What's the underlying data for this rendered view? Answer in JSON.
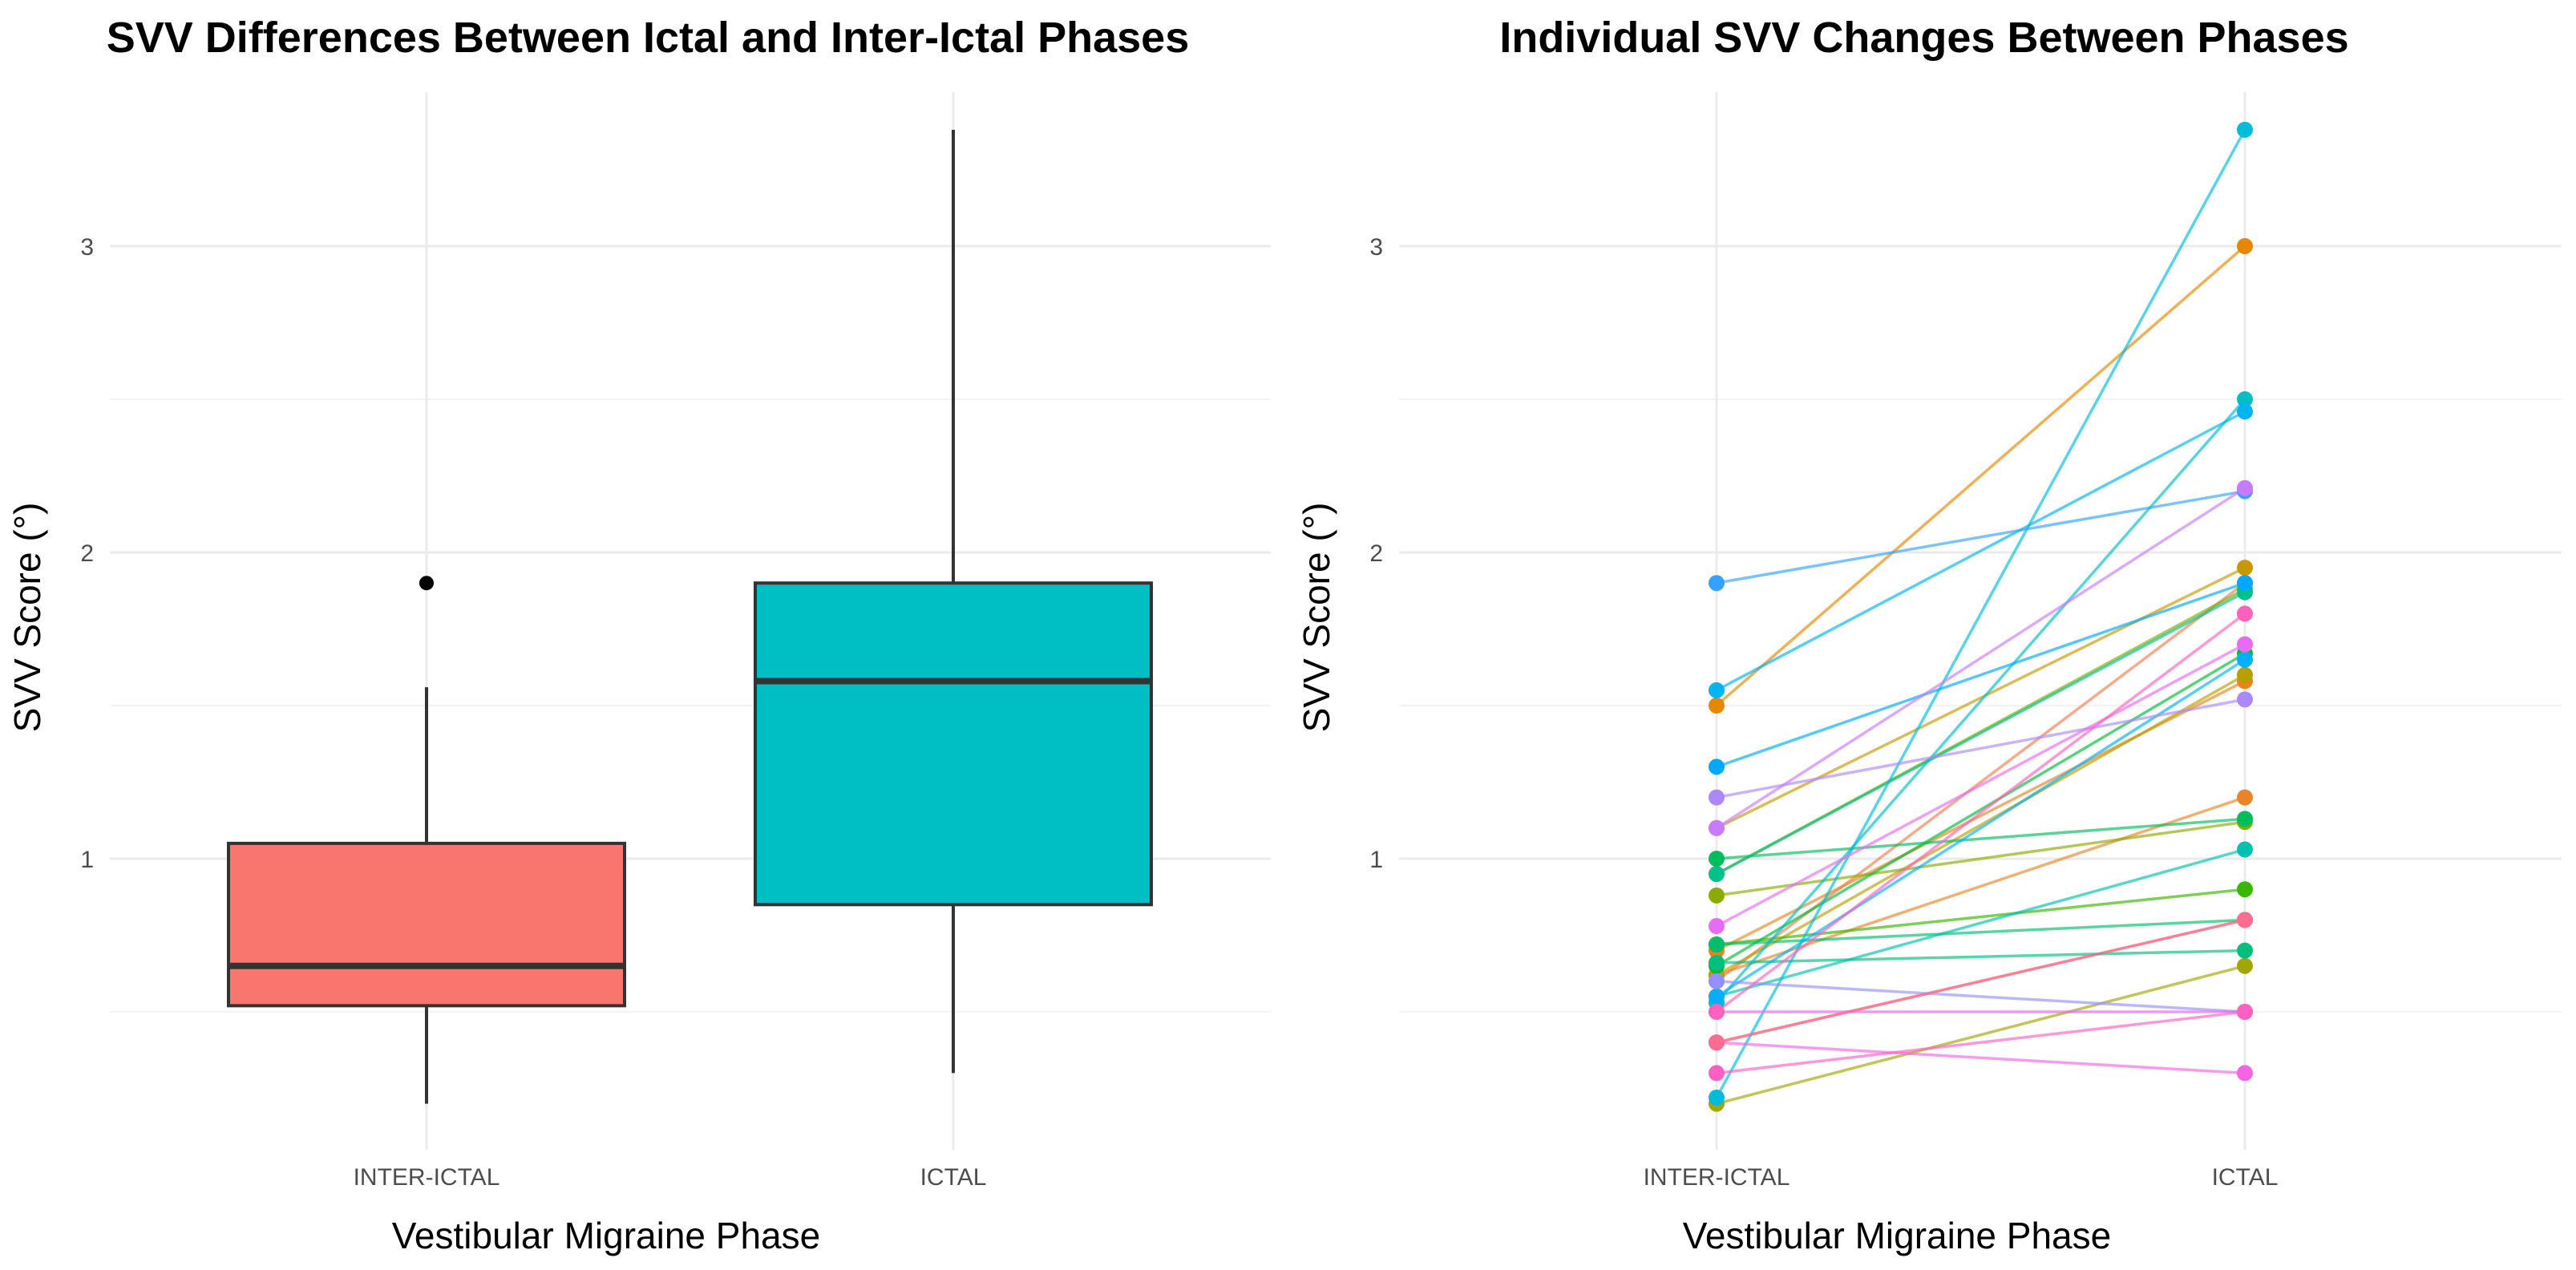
{
  "chart_data": [
    {
      "type": "box",
      "title": "SVV Differences Between Ictal and Inter-Ictal Phases",
      "xlabel": "Vestibular Migraine Phase",
      "ylabel": "SVV Score (°)",
      "categories": [
        "INTER-ICTAL",
        "ICTAL"
      ],
      "yticks": [
        1,
        2,
        3
      ],
      "ylim": [
        0.12,
        3.48
      ],
      "grid": true,
      "boxes": [
        {
          "category": "INTER-ICTAL",
          "color": "#F8766D",
          "whisker_low": 0.2,
          "q1": 0.52,
          "median": 0.65,
          "q3": 1.05,
          "whisker_high": 1.56,
          "outliers": [
            1.9
          ]
        },
        {
          "category": "ICTAL",
          "color": "#00BFC4",
          "whisker_low": 0.3,
          "q1": 0.85,
          "median": 1.58,
          "q3": 1.9,
          "whisker_high": 3.38,
          "outliers": []
        }
      ]
    },
    {
      "type": "line",
      "title": "Individual SVV Changes Between Phases",
      "xlabel": "Vestibular Migraine Phase",
      "ylabel": "SVV Score (°)",
      "categories": [
        "INTER-ICTAL",
        "ICTAL"
      ],
      "yticks": [
        1,
        2,
        3
      ],
      "ylim": [
        0.12,
        3.48
      ],
      "grid": true,
      "legend": "none",
      "series": [
        {
          "color": "#F8766D",
          "values": [
            0.4,
            0.8
          ]
        },
        {
          "color": "#F17E50",
          "values": [
            0.6,
            1.9
          ]
        },
        {
          "color": "#E8851F",
          "values": [
            0.7,
            1.58
          ]
        },
        {
          "color": "#E58700",
          "values": [
            1.5,
            3.0
          ]
        },
        {
          "color": "#E88526",
          "values": [
            0.62,
            1.2
          ]
        },
        {
          "color": "#C99800",
          "values": [
            1.1,
            1.95
          ]
        },
        {
          "color": "#B79F00",
          "values": [
            0.62,
            1.6
          ]
        },
        {
          "color": "#A3A500",
          "values": [
            0.2,
            0.65
          ]
        },
        {
          "color": "#8CAB00",
          "values": [
            0.88,
            1.12
          ]
        },
        {
          "color": "#7CAE00",
          "values": [
            0.95,
            1.88
          ]
        },
        {
          "color": "#39B600",
          "values": [
            0.72,
            0.9
          ]
        },
        {
          "color": "#00BA38",
          "values": [
            0.65,
            1.67
          ]
        },
        {
          "color": "#00BD5C",
          "values": [
            1.0,
            1.13
          ]
        },
        {
          "color": "#00BE6C",
          "values": [
            0.72,
            0.8
          ]
        },
        {
          "color": "#00BF7D",
          "values": [
            0.66,
            0.7
          ]
        },
        {
          "color": "#00C08B",
          "values": [
            0.95,
            1.87
          ]
        },
        {
          "color": "#00C0AF",
          "values": [
            0.55,
            1.03
          ]
        },
        {
          "color": "#00BFC4",
          "values": [
            0.53,
            2.5
          ]
        },
        {
          "color": "#00BCD8",
          "values": [
            0.22,
            3.38
          ]
        },
        {
          "color": "#00B4EF",
          "values": [
            1.55,
            2.46
          ]
        },
        {
          "color": "#00B0F6",
          "values": [
            0.55,
            1.65
          ]
        },
        {
          "color": "#35A2FF",
          "values": [
            1.9,
            2.2
          ]
        },
        {
          "color": "#00A9FF",
          "values": [
            1.3,
            1.9
          ]
        },
        {
          "color": "#9590FF",
          "values": [
            0.6,
            0.5
          ]
        },
        {
          "color": "#AC88FF",
          "values": [
            1.2,
            1.52
          ]
        },
        {
          "color": "#C77CFF",
          "values": [
            1.1,
            2.21
          ]
        },
        {
          "color": "#E76BF3",
          "values": [
            0.78,
            1.7
          ]
        },
        {
          "color": "#ED68ED",
          "values": [
            0.5,
            0.5
          ]
        },
        {
          "color": "#F564E3",
          "values": [
            0.4,
            0.3
          ]
        },
        {
          "color": "#FF61C3",
          "values": [
            0.3,
            0.5
          ]
        },
        {
          "color": "#FF62BC",
          "values": [
            0.5,
            1.8
          ]
        },
        {
          "color": "#FF6C91",
          "values": [
            0.4,
            0.8
          ]
        }
      ]
    }
  ]
}
